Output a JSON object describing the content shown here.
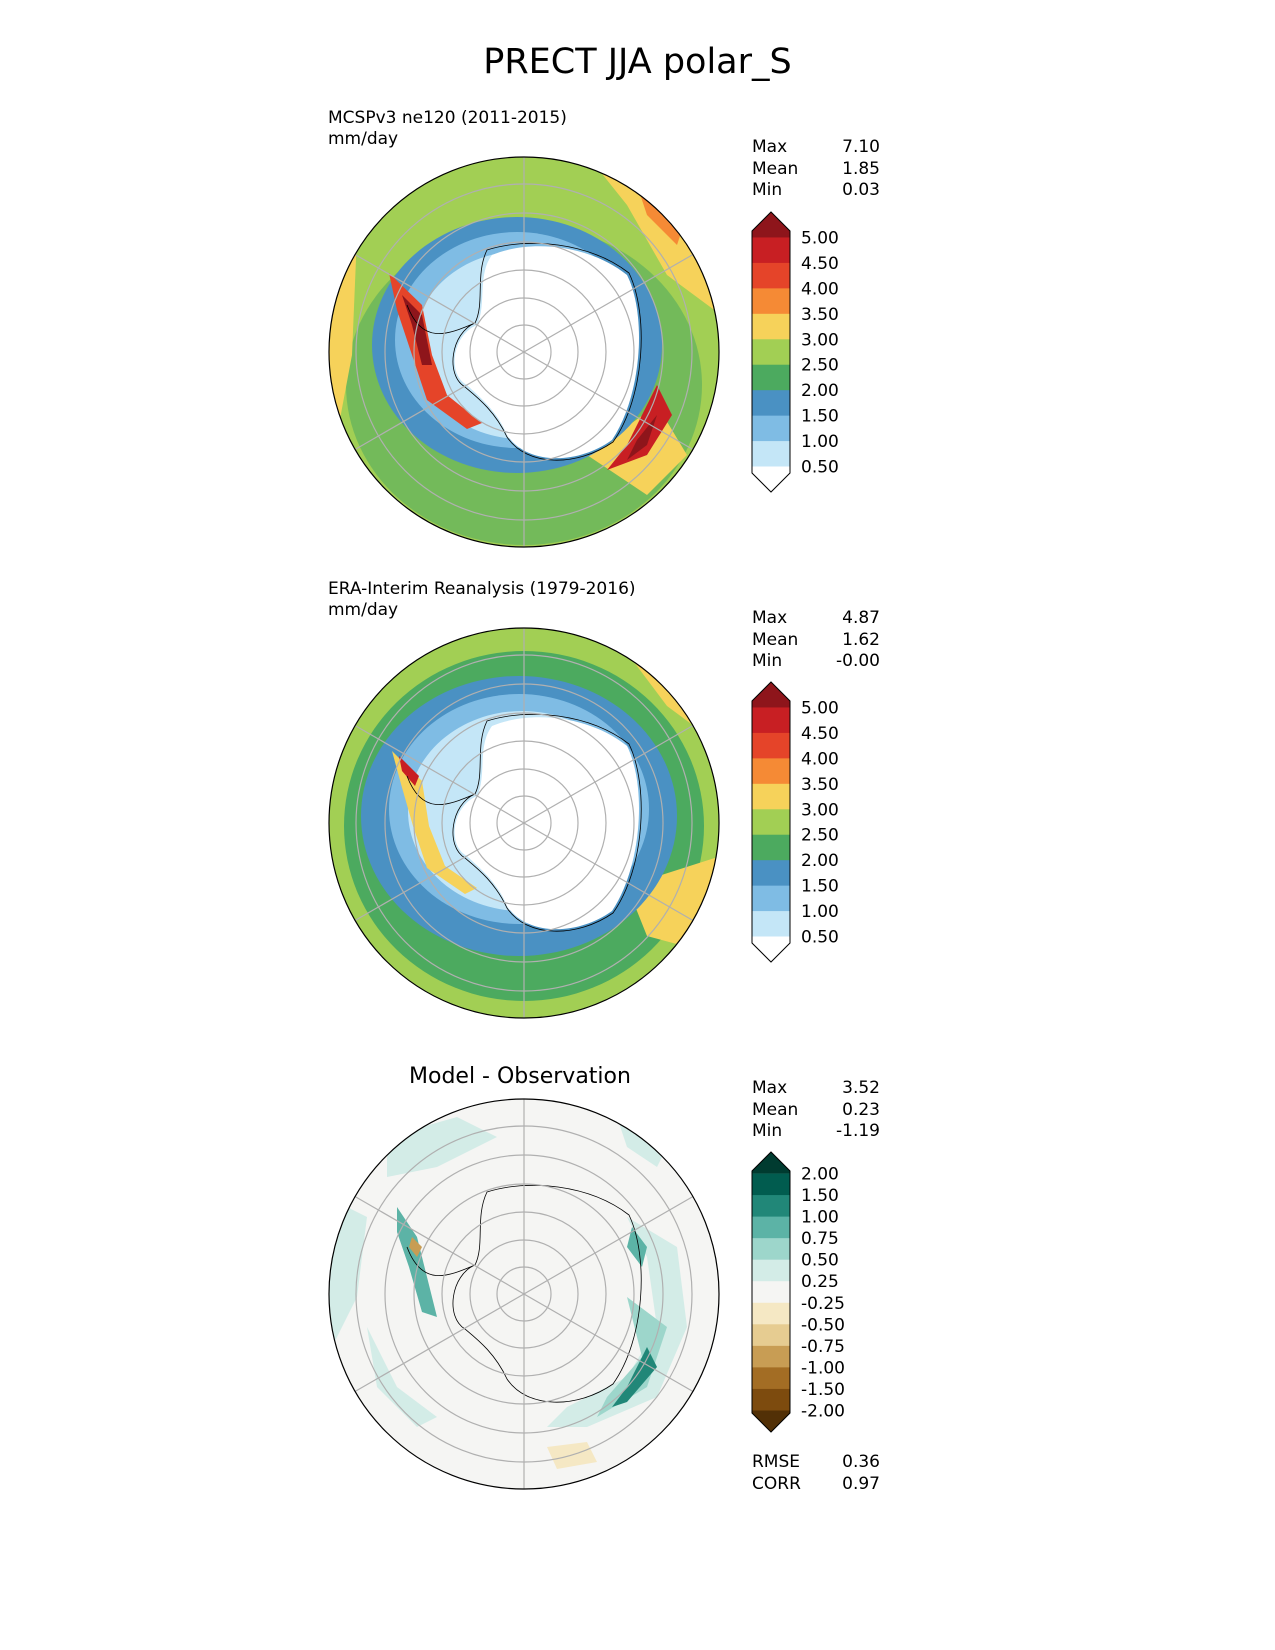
{
  "title": "PRECT JJA polar_S",
  "panels": [
    {
      "id": "test",
      "title_line1": "MCSPv3 ne120 (2011-2015)",
      "title_line2": "mm/day",
      "stats": [
        {
          "label": "Max",
          "value": "7.10"
        },
        {
          "label": "Mean",
          "value": "1.85"
        },
        {
          "label": "Min",
          "value": "0.03"
        }
      ]
    },
    {
      "id": "reference",
      "title_line1": "ERA-Interim Reanalysis (1979-2016)",
      "title_line2": "mm/day",
      "stats": [
        {
          "label": "Max",
          "value": "4.87"
        },
        {
          "label": "Mean",
          "value": "1.62"
        },
        {
          "label": "Min",
          "value": "-0.00"
        }
      ]
    },
    {
      "id": "difference",
      "title_center": "Model - Observation",
      "stats": [
        {
          "label": "Max",
          "value": "3.52"
        },
        {
          "label": "Mean",
          "value": "0.23"
        },
        {
          "label": "Min",
          "value": "-1.19"
        }
      ],
      "metrics": [
        {
          "label": "RMSE",
          "value": "0.36"
        },
        {
          "label": "CORR",
          "value": "0.97"
        }
      ]
    }
  ],
  "chart_data": [
    {
      "type": "heatmap",
      "projection": "south polar stereographic",
      "variable": "PRECT",
      "season": "JJA",
      "units": "mm/day",
      "colorbar": {
        "levels": [
          "0.50",
          "1.00",
          "1.50",
          "2.00",
          "2.50",
          "3.00",
          "3.50",
          "4.00",
          "4.50",
          "5.00"
        ],
        "colors": [
          "#ffffff",
          "#c4e6f7",
          "#7fbce4",
          "#4a91c3",
          "#4caa5f",
          "#a2cf54",
          "#f6d25a",
          "#f58a35",
          "#e54429",
          "#c81f23",
          "#8e151b"
        ],
        "extend": "both"
      }
    },
    {
      "type": "heatmap",
      "projection": "south polar stereographic",
      "variable": "PRECT",
      "season": "JJA",
      "units": "mm/day",
      "colorbar": {
        "levels": [
          "0.50",
          "1.00",
          "1.50",
          "2.00",
          "2.50",
          "3.00",
          "3.50",
          "4.00",
          "4.50",
          "5.00"
        ],
        "colors": [
          "#ffffff",
          "#c4e6f7",
          "#7fbce4",
          "#4a91c3",
          "#4caa5f",
          "#a2cf54",
          "#f6d25a",
          "#f58a35",
          "#e54429",
          "#c81f23",
          "#8e151b"
        ],
        "extend": "both"
      }
    },
    {
      "type": "heatmap",
      "projection": "south polar stereographic",
      "variable": "PRECT difference",
      "colorbar": {
        "levels": [
          "-2.00",
          "-1.50",
          "-1.00",
          "-0.75",
          "-0.50",
          "-0.25",
          "0.25",
          "0.50",
          "0.75",
          "1.00",
          "1.50",
          "2.00"
        ],
        "colors": [
          "#523006",
          "#7d4b0e",
          "#a36d24",
          "#c89d54",
          "#e6cc91",
          "#f5e8c4",
          "#f5f5f3",
          "#d3ece7",
          "#9dd6cb",
          "#5cb3a6",
          "#218778",
          "#015c4f",
          "#003b30"
        ],
        "extend": "both"
      }
    }
  ]
}
